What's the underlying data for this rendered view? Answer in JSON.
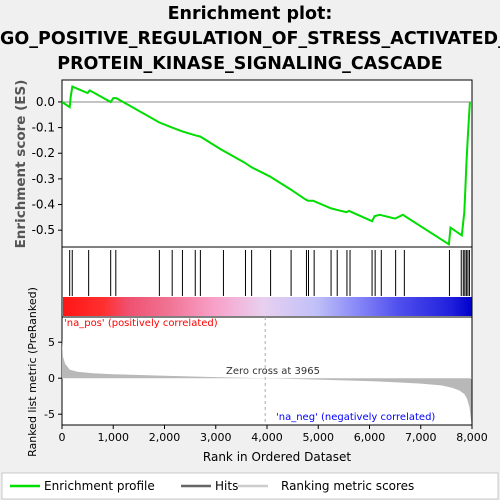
{
  "title_lines": [
    "Enrichment plot:",
    "GO_POSITIVE_REGULATION_OF_STRESS_ACTIVATED_",
    "PROTEIN_KINASE_SIGNALING_CASCADE"
  ],
  "colors": {
    "enrichment_line": "#00dd00",
    "hit_line": "#000000",
    "ranked_fill": "#b8b8b8",
    "pos_label": "#ff0000",
    "neg_label": "#0000ff",
    "zero_cross_line": "#aaaaaa",
    "background": "#f0f0f0",
    "plot_bg": "#ffffff"
  },
  "chart_data": [
    {
      "type": "line",
      "name": "enrichment-score-panel",
      "ylabel": "Enrichment score (ES)",
      "ylim": [
        -0.55,
        0.07
      ],
      "xlim": [
        0,
        8000
      ],
      "yticks": [
        0.0,
        -0.1,
        -0.2,
        -0.3,
        -0.4,
        -0.5
      ],
      "ytick_labels": [
        "0.0",
        "-0.1",
        "-0.2",
        "-0.3",
        "-0.4",
        "-0.5"
      ],
      "grid": false,
      "zero_line": true,
      "series": [
        {
          "x": [
            0,
            150,
            170,
            200,
            500,
            540,
            950,
            1000,
            1060,
            1900,
            2150,
            2350,
            2600,
            2700,
            3100,
            3550,
            3700,
            4050,
            4450,
            4750,
            4800,
            4900,
            5250,
            5350,
            5550,
            5600,
            6050,
            6100,
            6200,
            6500,
            6650,
            7550,
            7580,
            7800,
            7850,
            7870,
            7890,
            7920,
            7960
          ],
          "y": [
            0.0,
            -0.02,
            0.02,
            0.06,
            0.035,
            0.045,
            0.0,
            0.015,
            0.015,
            -0.08,
            -0.1,
            -0.115,
            -0.13,
            -0.135,
            -0.185,
            -0.235,
            -0.255,
            -0.29,
            -0.34,
            -0.38,
            -0.385,
            -0.385,
            -0.415,
            -0.42,
            -0.43,
            -0.425,
            -0.465,
            -0.445,
            -0.44,
            -0.455,
            -0.44,
            -0.555,
            -0.49,
            -0.52,
            -0.43,
            -0.345,
            -0.24,
            -0.13,
            0.0
          ]
        }
      ]
    },
    {
      "type": "scatter",
      "name": "hits-panel",
      "legend_name": "Hits",
      "hit_positions": [
        150,
        200,
        520,
        950,
        1050,
        1900,
        2150,
        2350,
        2600,
        2700,
        3150,
        3580,
        3700,
        4070,
        4470,
        4770,
        4810,
        4920,
        5250,
        5370,
        5560,
        5620,
        6050,
        6110,
        6230,
        6510,
        6680,
        7560,
        7790,
        7830,
        7860,
        7890,
        7920,
        7950
      ]
    },
    {
      "type": "area",
      "name": "ranked-list-panel",
      "xlabel": "Rank in Ordered Dataset",
      "ylabel": "Ranked list metric (PreRanked)",
      "ylim": [
        -6.5,
        8.5
      ],
      "xlim": [
        0,
        8000
      ],
      "yticks": [
        -5,
        0,
        5
      ],
      "ytick_labels": [
        "-5",
        "0",
        "5"
      ],
      "xticks": [
        0,
        1000,
        2000,
        3000,
        4000,
        5000,
        6000,
        7000,
        8000
      ],
      "xtick_labels": [
        "0",
        "1,000",
        "2,000",
        "3,000",
        "4,000",
        "5,000",
        "6,000",
        "7,000",
        "8,000"
      ],
      "zero_cross_rank": 3965,
      "zero_cross_text": "Zero cross at 3965",
      "pos_text": "'na_pos' (positively correlated)",
      "neg_text": "'na_neg' (negatively correlated)",
      "x": [
        0,
        20,
        60,
        150,
        300,
        600,
        1000,
        2000,
        3000,
        3965,
        5000,
        6000,
        6500,
        7000,
        7400,
        7600,
        7750,
        7850,
        7900,
        7950,
        7990
      ],
      "y": [
        5.5,
        3.0,
        2.0,
        1.2,
        0.9,
        0.7,
        0.55,
        0.35,
        0.15,
        0.0,
        -0.2,
        -0.4,
        -0.55,
        -0.75,
        -1.0,
        -1.3,
        -1.7,
        -2.2,
        -2.8,
        -4.0,
        -6.3
      ]
    }
  ],
  "legend": {
    "items": [
      {
        "label": "Enrichment profile"
      },
      {
        "label": "Hits"
      },
      {
        "label": "Ranking metric scores"
      }
    ]
  }
}
